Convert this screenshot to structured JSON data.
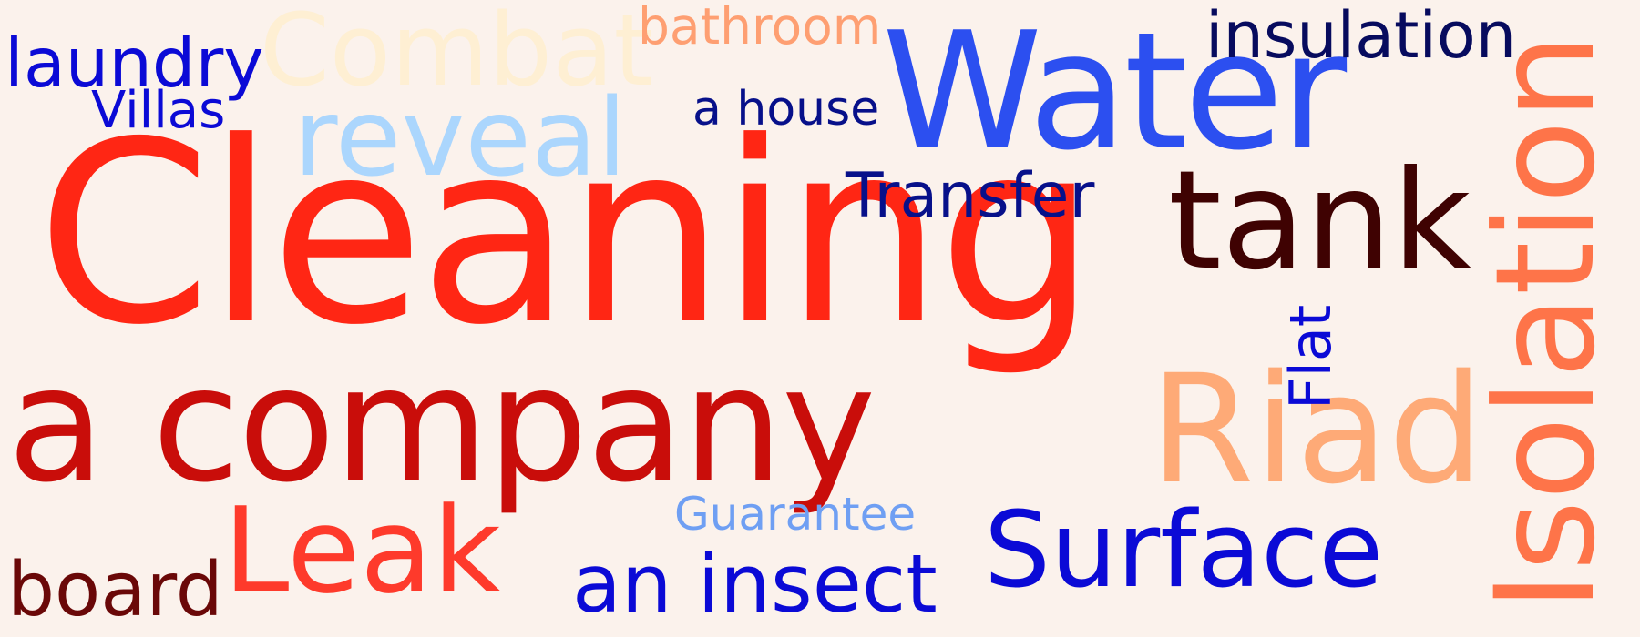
{
  "background_color": "#fbf2ec",
  "words": [
    {
      "id": "cleaning",
      "text": "Cleaning",
      "color": "#ff2614"
    },
    {
      "id": "company",
      "text": "a company",
      "color": "#c90d0a"
    },
    {
      "id": "water",
      "text": "Water",
      "color": "#2c4ff0"
    },
    {
      "id": "tank",
      "text": "tank",
      "color": "#3f0202"
    },
    {
      "id": "riad",
      "text": "Riad",
      "color": "#feaa77"
    },
    {
      "id": "surface",
      "text": "Surface",
      "color": "#0b0ad6"
    },
    {
      "id": "isolation",
      "text": "Isolation",
      "color": "#fe7449"
    },
    {
      "id": "leak",
      "text": "Leak",
      "color": "#fe3a2b"
    },
    {
      "id": "insect",
      "text": "an insect",
      "color": "#0b0ad6"
    },
    {
      "id": "reveal",
      "text": "reveal",
      "color": "#abd6fd"
    },
    {
      "id": "combat",
      "text": "Combat",
      "color": "#feefd3"
    },
    {
      "id": "bathroom",
      "text": "bathroom",
      "color": "#fe9f72"
    },
    {
      "id": "insulation",
      "text": "insulation",
      "color": "#070b5e"
    },
    {
      "id": "laundry",
      "text": "laundry",
      "color": "#0b0ad6"
    },
    {
      "id": "villas",
      "text": "Villas",
      "color": "#0b0ad6"
    },
    {
      "id": "house",
      "text": "a house",
      "color": "#07108a"
    },
    {
      "id": "transfer",
      "text": "Transfer",
      "color": "#07108a"
    },
    {
      "id": "flat",
      "text": "Flat",
      "color": "#0b0ad6"
    },
    {
      "id": "guarantee",
      "text": "Guarantee",
      "color": "#6f9ff3"
    },
    {
      "id": "board",
      "text": "board",
      "color": "#6a0808"
    }
  ]
}
